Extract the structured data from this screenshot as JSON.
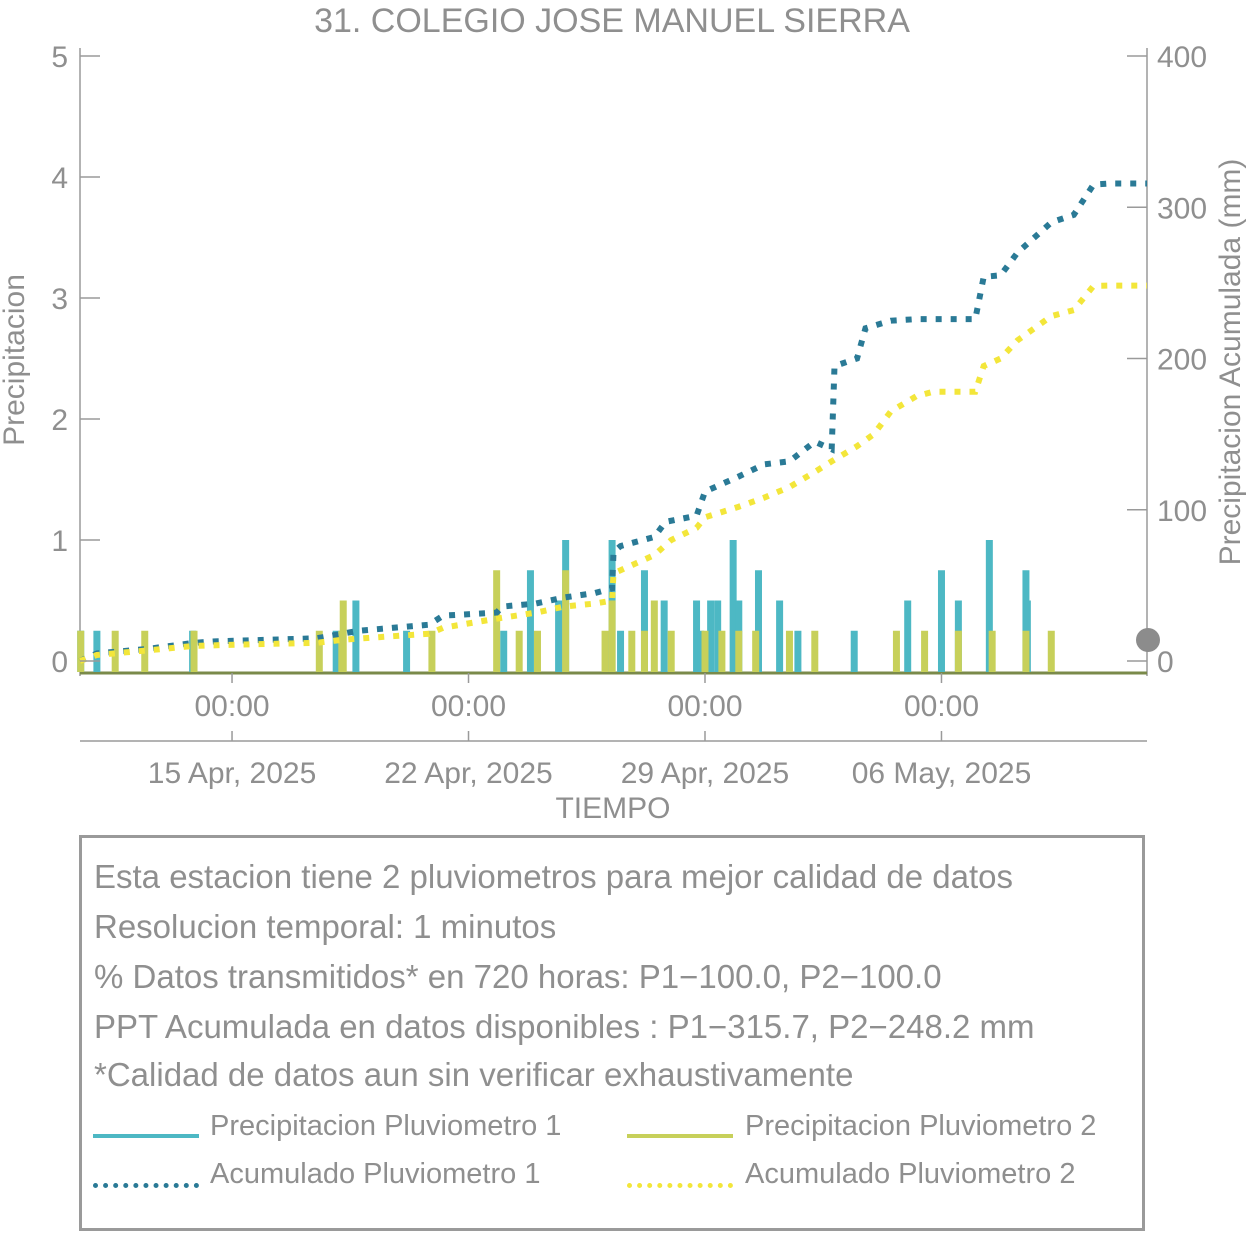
{
  "chart_data": {
    "type": "bar+line",
    "title": "31. COLEGIO JOSE MANUEL SIERRA",
    "xlabel": "TIEMPO",
    "ylabel_left": "Precipitacion",
    "ylabel_right": "Precipitacion Acumulada (mm)",
    "ylim_left": [
      0,
      5
    ],
    "ylim_right": [
      0,
      400
    ],
    "yticks_left": [
      "0",
      "1",
      "2",
      "3",
      "4",
      "5"
    ],
    "yticks_right": [
      "0",
      "100",
      "200",
      "300",
      "400"
    ],
    "xlim": [
      "2025-04-10T12:00",
      "2025-05-12T02:00"
    ],
    "xticks": [
      {
        "time": "2025-04-15T00:00",
        "label": "00:00",
        "date": "15 Apr, 2025"
      },
      {
        "time": "2025-04-22T00:00",
        "label": "00:00",
        "date": "22 Apr, 2025"
      },
      {
        "time": "2025-04-29T00:00",
        "label": "00:00",
        "date": "29 Apr, 2025"
      },
      {
        "time": "2025-05-06T00:00",
        "label": "00:00",
        "date": "06 May, 2025"
      }
    ],
    "series": [
      {
        "name": "Precipitacion Pluviometro 1",
        "kind": "bar",
        "color": "#4db8c4",
        "points": [
          [
            "2025-04-10T12:30",
            0.25
          ],
          [
            "2025-04-11T00:00",
            0.25
          ],
          [
            "2025-04-13T20:00",
            0.25
          ],
          [
            "2025-04-18T02:00",
            0.25
          ],
          [
            "2025-04-18T16:00",
            0.5
          ],
          [
            "2025-04-20T04:00",
            0.25
          ],
          [
            "2025-04-23T01:00",
            0.25
          ],
          [
            "2025-04-23T20:00",
            0.75
          ],
          [
            "2025-04-24T21:00",
            1.0
          ],
          [
            "2025-04-24T16:00",
            0.5
          ],
          [
            "2025-04-26T06:00",
            1.0
          ],
          [
            "2025-04-26T12:00",
            0.25
          ],
          [
            "2025-04-27T05:00",
            0.75
          ],
          [
            "2025-04-27T19:00",
            0.5
          ],
          [
            "2025-04-28T18:00",
            0.5
          ],
          [
            "2025-04-28T21:00",
            0.25
          ],
          [
            "2025-04-29T04:00",
            0.5
          ],
          [
            "2025-04-29T09:00",
            0.5
          ],
          [
            "2025-04-29T20:00",
            1.0
          ],
          [
            "2025-04-30T00:00",
            0.5
          ],
          [
            "2025-04-30T14:00",
            0.75
          ],
          [
            "2025-05-01T05:00",
            0.5
          ],
          [
            "2025-05-01T18:00",
            0.25
          ],
          [
            "2025-05-03T10:00",
            0.25
          ],
          [
            "2025-05-05T00:00",
            0.5
          ],
          [
            "2025-05-06T00:00",
            0.75
          ],
          [
            "2025-05-06T12:00",
            0.5
          ],
          [
            "2025-05-07T10:00",
            1.0
          ],
          [
            "2025-05-08T12:00",
            0.75
          ],
          [
            "2025-05-08T13:00",
            0.5
          ]
        ]
      },
      {
        "name": "Precipitacion Pluviometro 2",
        "kind": "bar",
        "color": "#c7d05a",
        "points": [
          [
            "2025-04-10T12:30",
            0.25
          ],
          [
            "2025-04-11T13:00",
            0.25
          ],
          [
            "2025-04-12T10:00",
            0.25
          ],
          [
            "2025-04-13T21:00",
            0.25
          ],
          [
            "2025-04-17T14:00",
            0.25
          ],
          [
            "2025-04-18T06:00",
            0.25
          ],
          [
            "2025-04-18T07:00",
            0.5
          ],
          [
            "2025-04-20T22:00",
            0.25
          ],
          [
            "2025-04-22T20:00",
            0.75
          ],
          [
            "2025-04-23T12:00",
            0.25
          ],
          [
            "2025-04-24T01:00",
            0.25
          ],
          [
            "2025-04-24T21:00",
            0.75
          ],
          [
            "2025-04-26T01:00",
            0.25
          ],
          [
            "2025-04-26T06:00",
            0.5
          ],
          [
            "2025-04-26T20:00",
            0.25
          ],
          [
            "2025-04-27T05:00",
            0.25
          ],
          [
            "2025-04-27T12:00",
            0.5
          ],
          [
            "2025-04-28T00:00",
            0.25
          ],
          [
            "2025-04-29T00:00",
            0.25
          ],
          [
            "2025-04-29T12:00",
            0.25
          ],
          [
            "2025-04-30T00:00",
            0.25
          ],
          [
            "2025-04-30T12:00",
            0.25
          ],
          [
            "2025-05-01T12:00",
            0.25
          ],
          [
            "2025-05-02T06:00",
            0.25
          ],
          [
            "2025-05-04T16:00",
            0.25
          ],
          [
            "2025-05-05T12:00",
            0.25
          ],
          [
            "2025-05-06T12:00",
            0.25
          ],
          [
            "2025-05-07T12:00",
            0.25
          ],
          [
            "2025-05-08T12:00",
            0.25
          ],
          [
            "2025-05-09T06:00",
            0.25
          ]
        ]
      },
      {
        "name": "Acumulado Pluviometro 1",
        "kind": "line",
        "axis": "right",
        "color": "#2a7a96",
        "points": [
          [
            "2025-04-10T12:00",
            0
          ],
          [
            "2025-04-11T00:00",
            5
          ],
          [
            "2025-04-12T12:00",
            8
          ],
          [
            "2025-04-13T21:00",
            12
          ],
          [
            "2025-04-14T12:00",
            13
          ],
          [
            "2025-04-17T12:00",
            15
          ],
          [
            "2025-04-18T06:00",
            18
          ],
          [
            "2025-04-18T18:00",
            20
          ],
          [
            "2025-04-20T20:00",
            24
          ],
          [
            "2025-04-21T06:00",
            30
          ],
          [
            "2025-04-22T20:00",
            32
          ],
          [
            "2025-04-23T00:00",
            36
          ],
          [
            "2025-04-24T00:00",
            38
          ],
          [
            "2025-04-24T20:00",
            42
          ],
          [
            "2025-04-25T18:00",
            45
          ],
          [
            "2025-04-26T06:00",
            48
          ],
          [
            "2025-04-26T07:00",
            72
          ],
          [
            "2025-04-26T12:00",
            76
          ],
          [
            "2025-04-27T12:00",
            82
          ],
          [
            "2025-04-27T20:00",
            92
          ],
          [
            "2025-04-28T18:00",
            96
          ],
          [
            "2025-04-29T00:00",
            112
          ],
          [
            "2025-04-30T00:00",
            122
          ],
          [
            "2025-04-30T18:00",
            130
          ],
          [
            "2025-05-01T12:00",
            132
          ],
          [
            "2025-05-02T06:00",
            145
          ],
          [
            "2025-05-02T18:00",
            140
          ],
          [
            "2025-05-02T20:00",
            195
          ],
          [
            "2025-05-03T12:00",
            200
          ],
          [
            "2025-05-03T18:00",
            220
          ],
          [
            "2025-05-04T12:00",
            225
          ],
          [
            "2025-05-05T06:00",
            226
          ],
          [
            "2025-05-07T00:00",
            226
          ],
          [
            "2025-05-07T06:00",
            254
          ],
          [
            "2025-05-07T18:00",
            255
          ],
          [
            "2025-05-08T06:00",
            270
          ],
          [
            "2025-05-08T18:00",
            280
          ],
          [
            "2025-05-09T06:00",
            290
          ],
          [
            "2025-05-09T22:00",
            295
          ],
          [
            "2025-05-10T12:00",
            315
          ],
          [
            "2025-05-11T00:00",
            315.7
          ],
          [
            "2025-05-12T02:00",
            315.7
          ]
        ]
      },
      {
        "name": "Acumulado Pluviometro 2",
        "kind": "line",
        "axis": "right",
        "color": "#f3e63a",
        "points": [
          [
            "2025-04-10T12:00",
            0
          ],
          [
            "2025-04-11T00:00",
            4
          ],
          [
            "2025-04-12T12:00",
            7
          ],
          [
            "2025-04-13T21:00",
            10
          ],
          [
            "2025-04-15T12:00",
            11
          ],
          [
            "2025-04-17T12:00",
            12
          ],
          [
            "2025-04-18T06:00",
            14
          ],
          [
            "2025-04-19T12:00",
            16
          ],
          [
            "2025-04-20T20:00",
            18
          ],
          [
            "2025-04-21T06:00",
            22
          ],
          [
            "2025-04-22T20:00",
            28
          ],
          [
            "2025-04-24T00:00",
            32
          ],
          [
            "2025-04-24T20:00",
            36
          ],
          [
            "2025-04-25T18:00",
            38
          ],
          [
            "2025-04-26T06:00",
            40
          ],
          [
            "2025-04-26T07:00",
            58
          ],
          [
            "2025-04-26T12:00",
            60
          ],
          [
            "2025-04-27T12:00",
            70
          ],
          [
            "2025-04-28T00:00",
            80
          ],
          [
            "2025-04-28T18:00",
            88
          ],
          [
            "2025-04-29T00:00",
            95
          ],
          [
            "2025-04-30T00:00",
            102
          ],
          [
            "2025-04-30T18:00",
            108
          ],
          [
            "2025-05-01T12:00",
            115
          ],
          [
            "2025-05-02T06:00",
            125
          ],
          [
            "2025-05-02T18:00",
            132
          ],
          [
            "2025-05-03T12:00",
            142
          ],
          [
            "2025-05-04T00:00",
            150
          ],
          [
            "2025-05-04T12:00",
            165
          ],
          [
            "2025-05-05T06:00",
            175
          ],
          [
            "2025-05-05T18:00",
            178
          ],
          [
            "2025-05-07T00:00",
            178
          ],
          [
            "2025-05-07T06:00",
            195
          ],
          [
            "2025-05-07T18:00",
            200
          ],
          [
            "2025-05-08T06:00",
            212
          ],
          [
            "2025-05-08T18:00",
            220
          ],
          [
            "2025-05-09T06:00",
            228
          ],
          [
            "2025-05-09T22:00",
            232
          ],
          [
            "2025-05-10T12:00",
            248
          ],
          [
            "2025-05-11T00:00",
            248.2
          ],
          [
            "2025-05-12T02:00",
            248.2
          ]
        ]
      }
    ]
  },
  "info": {
    "line1": "Esta estacion tiene 2 pluviometros para mejor calidad de datos",
    "line2": "Resolucion temporal: 1 minutos",
    "line3": "% Datos transmitidos* en 720 horas: P1−100.0, P2−100.0",
    "line4": "PPT Acumulada en datos disponibles : P1−315.7, P2−248.2 mm",
    "line5": "*Calidad de datos aun sin verificar exhaustivamente"
  },
  "legend": [
    {
      "label": "Precipitacion Pluviometro 1",
      "color": "#4db8c4",
      "style": "solid"
    },
    {
      "label": "Precipitacion Pluviometro 2",
      "color": "#c7d05a",
      "style": "solid"
    },
    {
      "label": "Acumulado Pluviometro 1",
      "color": "#2a7a96",
      "style": "dotted"
    },
    {
      "label": "Acumulado Pluviometro 2",
      "color": "#f3e63a",
      "style": "dotted"
    }
  ],
  "colors": {
    "axis": "#9a9a9a",
    "text": "#8f8f8f",
    "marker": "#8c8c8c"
  }
}
